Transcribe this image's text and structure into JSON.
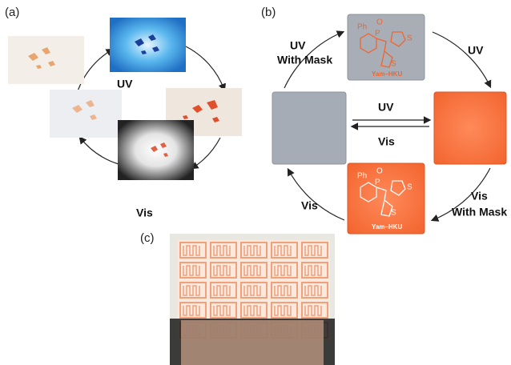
{
  "panel_a": {
    "label": "(a)",
    "uv": "UV",
    "vis": "Vis"
  },
  "panel_b": {
    "label": "(b)",
    "uv_with_mask": [
      "UV",
      "With Mask"
    ],
    "uv_top": "UV",
    "uv_center": "UV",
    "vis_center": "Vis",
    "vis_left": "Vis",
    "vis_with_mask": [
      "Vis",
      "With Mask"
    ],
    "logo": "Yam–HKU",
    "structure": {
      "phenyl": "Ph",
      "oxygen": "O",
      "phosphorus": "P",
      "sulfur": "S"
    }
  },
  "panel_c": {
    "label": "(c)"
  }
}
